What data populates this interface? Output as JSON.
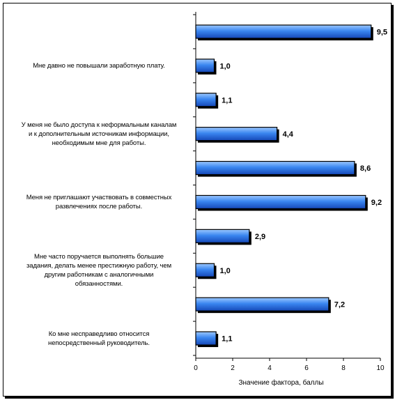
{
  "chart_data": {
    "type": "bar",
    "orientation": "horizontal",
    "categories": [
      "",
      "Мне давно не повышали заработную плату.",
      "",
      "У меня не было доступа к неформальным каналам и к дополнительным источникам информации, необходимым мне для работы.",
      "",
      "Меня не приглашают участвовать в совместных развлечениях после работы.",
      "",
      "Мне часто поручается выполнять большие задания, делать менее престижную работу, чем другим работникам с аналогичными обязанностями.",
      "",
      "Ко мне несправедливо относится непосредственный руководитель."
    ],
    "category_display": [
      "",
      "Мне давно не повышали заработную плату.",
      "",
      "У меня не было доступа к неформальным каналам\nи к дополнительным источникам информации,\nнеобходимым мне для работы.",
      "",
      "Меня не приглашают участвовать в совместных\nразвлечениях после работы.",
      "",
      "Мне часто поручается выполнять большие\nзадания, делать менее престижную работу, чем\nдругим работникам с аналогичными\nобязанностями.",
      "",
      "Ко мне несправедливо относится\nнепосредственный руководитель."
    ],
    "values": [
      9.5,
      1.0,
      1.1,
      4.4,
      8.6,
      9.2,
      2.9,
      1.0,
      7.2,
      1.1
    ],
    "value_labels": [
      "9,5",
      "1,0",
      "1,1",
      "4,4",
      "8,6",
      "9,2",
      "2,9",
      "1,0",
      "7,2",
      "1,1"
    ],
    "xlim": [
      0,
      10
    ],
    "xticks": [
      0,
      2,
      4,
      6,
      8,
      10
    ],
    "xlabel": "Значение фактора, баллы",
    "ylabel": "",
    "title": "",
    "grid": false,
    "legend": "none",
    "bar_color": "#1e63d6",
    "bar_highlight": "#9cc8ff"
  }
}
